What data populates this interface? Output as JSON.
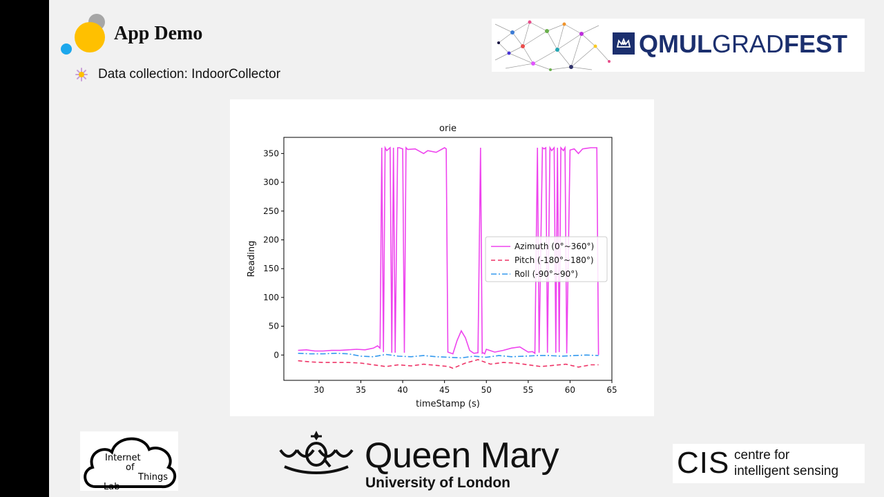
{
  "slide": {
    "title": "App Demo",
    "bullet": "Data collection: IndoorCollector"
  },
  "logos": {
    "qmul_gradfest": {
      "bold1": "QMUL",
      "light": "GRAD",
      "bold2": "FEST"
    },
    "iot_lab": {
      "line1": "Internet",
      "line2": "of",
      "line3": "Things",
      "line4": "Lab"
    },
    "queen_mary": {
      "name": "Queen Mary",
      "sub": "University of London"
    },
    "cis": {
      "abbr": "CIS",
      "line1": "centre for",
      "line2": "intelligent sensing"
    }
  },
  "colors": {
    "azimuth": "#ee44ee",
    "pitch": "#ee3366",
    "roll": "#3399ee",
    "dot_yellow": "#ffc000",
    "dot_grey": "#a6a6a6",
    "dot_blue": "#1ca7ec",
    "qmul_blue": "#1b2f6e"
  },
  "chart_data": {
    "type": "line",
    "title": "orie",
    "xlabel": "timeStamp (s)",
    "ylabel": "Reading",
    "xlim": [
      25.8,
      65
    ],
    "ylim": [
      -44,
      378
    ],
    "xticks": [
      30,
      35,
      40,
      45,
      50,
      55,
      60,
      65
    ],
    "yticks": [
      0,
      50,
      100,
      150,
      200,
      250,
      300,
      350
    ],
    "legend_position": "center-right",
    "series": [
      {
        "name": "Azimuth (0°~360°)",
        "style": "solid",
        "x": [
          27.5,
          28.5,
          29.5,
          30.5,
          31.5,
          32.5,
          33.5,
          34.5,
          35.5,
          36.5,
          37,
          37.3,
          37.5,
          37.7,
          37.9,
          38.1,
          38.5,
          38.7,
          38.9,
          39.1,
          39.4,
          39.6,
          40.0,
          40.2,
          40.4,
          40.6,
          41.5,
          42.5,
          43.0,
          44.0,
          45.0,
          45.2,
          45.4,
          46.0,
          46.5,
          47.0,
          47.5,
          48.0,
          48.5,
          49.0,
          49.3,
          49.5,
          49.6,
          49.8,
          50.0,
          51.0,
          52.0,
          53.0,
          54.0,
          55.0,
          55.5,
          55.8,
          56.1,
          56.3,
          56.7,
          56.9,
          57.1,
          57.3,
          57.6,
          57.8,
          58.1,
          58.3,
          58.5,
          58.7,
          58.9,
          59.2,
          59.4,
          59.6,
          60.0,
          60.5,
          61.0,
          61.5,
          62.0,
          62.5,
          63.0,
          63.2,
          63.4
        ],
        "y": [
          8,
          9,
          7,
          7,
          8,
          8,
          9,
          10,
          9,
          12,
          16,
          12,
          360,
          5,
          360,
          355,
          360,
          4,
          360,
          4,
          360,
          360,
          358,
          4,
          360,
          357,
          358,
          350,
          355,
          352,
          360,
          358,
          5,
          2,
          25,
          42,
          30,
          8,
          3,
          4,
          360,
          3,
          4,
          2,
          10,
          5,
          8,
          12,
          14,
          5,
          6,
          3,
          360,
          4,
          360,
          358,
          360,
          4,
          360,
          355,
          360,
          4,
          360,
          5,
          360,
          355,
          360,
          3,
          356,
          358,
          350,
          358,
          359,
          360,
          360,
          360,
          0
        ]
      },
      {
        "name": "Pitch (-180°~180°)",
        "style": "dashed",
        "x": [
          27.5,
          29,
          30.5,
          32,
          33.5,
          35,
          36.5,
          38,
          39.5,
          41,
          42.5,
          44,
          45.5,
          46,
          47.5,
          49,
          50.5,
          52,
          53.5,
          55,
          56.5,
          58,
          59.5,
          61,
          62.5,
          63.4
        ],
        "y": [
          -10,
          -12,
          -13,
          -13,
          -13,
          -14,
          -17,
          -20,
          -17,
          -19,
          -16,
          -18,
          -20,
          -23,
          -14,
          -8,
          -16,
          -13,
          -14,
          -17,
          -20,
          -18,
          -16,
          -21,
          -17,
          -17
        ]
      },
      {
        "name": "Roll (-90°~90°)",
        "style": "dashdot",
        "x": [
          27.5,
          29,
          30.5,
          32,
          33.5,
          35,
          36.5,
          38,
          39.5,
          41,
          42.5,
          44,
          45.5,
          47,
          48.5,
          50,
          51.5,
          53,
          54.5,
          56,
          57.5,
          59,
          60.5,
          62,
          63.4
        ],
        "y": [
          3,
          2,
          2,
          3,
          2,
          -2,
          -3,
          1,
          -2,
          -3,
          -1,
          -3,
          -4,
          -5,
          -2,
          -4,
          -1,
          -3,
          -2,
          -1,
          -1,
          -2,
          -1,
          0,
          -1
        ]
      }
    ]
  }
}
